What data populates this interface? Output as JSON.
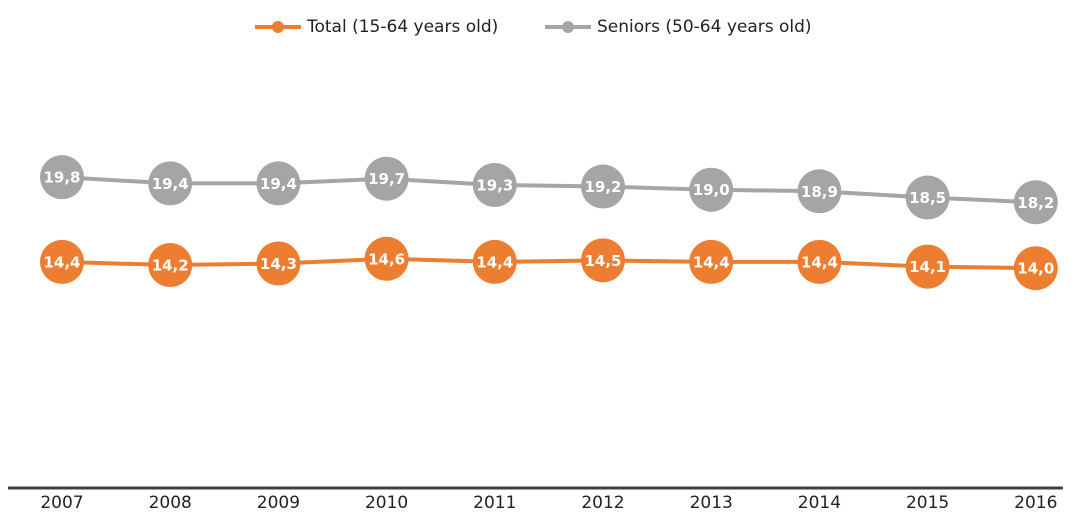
{
  "chart_data": {
    "type": "line",
    "categories": [
      "2007",
      "2008",
      "2009",
      "2010",
      "2011",
      "2012",
      "2013",
      "2014",
      "2015",
      "2016"
    ],
    "series": [
      {
        "name": "Total (15-64 years old)",
        "color": "#ed7d31",
        "values": [
          14.4,
          14.2,
          14.3,
          14.6,
          14.4,
          14.5,
          14.4,
          14.4,
          14.1,
          14.0
        ],
        "value_labels": [
          "14,4",
          "14,2",
          "14,3",
          "14,6",
          "14,4",
          "14,5",
          "14,4",
          "14,4",
          "14,1",
          "14,0"
        ]
      },
      {
        "name": "Seniors (50-64 years old)",
        "color": "#a5a5a5",
        "values": [
          19.8,
          19.4,
          19.4,
          19.7,
          19.3,
          19.2,
          19.0,
          18.9,
          18.5,
          18.2
        ],
        "value_labels": [
          "19,8",
          "19,4",
          "19,4",
          "19,7",
          "19,3",
          "19,2",
          "19,0",
          "18,9",
          "18,5",
          "18,2"
        ]
      }
    ],
    "ylim": [
      0,
      30
    ],
    "legend": "top"
  }
}
